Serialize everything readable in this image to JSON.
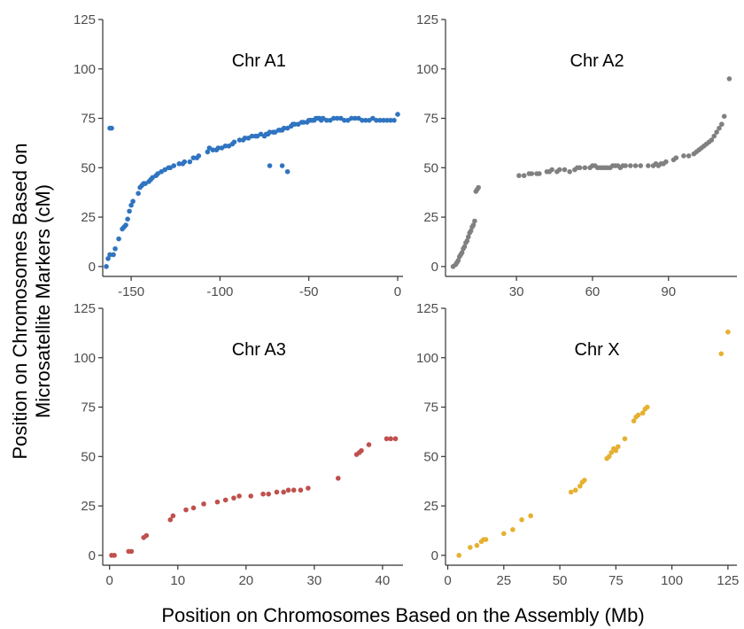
{
  "ylabel_lines": [
    "Position on Chromosomes Based on",
    "Microsatellite Markers (cM)"
  ],
  "xlabel": "Position on Chromosomes Based on the Assembly (Mb)",
  "chart_data": [
    {
      "type": "scatter",
      "title": "Chr A1",
      "color": "#2f74c0",
      "xlim": [
        -166,
        3
      ],
      "ylim": [
        -5,
        125
      ],
      "xticks": [
        -150,
        -100,
        -50,
        0
      ],
      "yticks": [
        0,
        25,
        50,
        75,
        100,
        125
      ],
      "x": [
        -164,
        -163,
        -162,
        -161,
        -160,
        -159,
        -157,
        -155,
        -154,
        -153,
        -152,
        -151,
        -150,
        -149,
        -146,
        -145,
        -144,
        -143,
        -142,
        -140,
        -139,
        -138,
        -136,
        -135,
        -133,
        -131,
        -129,
        -128,
        -126,
        -123,
        -121,
        -120,
        -117,
        -115,
        -113,
        -112,
        -107,
        -106,
        -104,
        -102,
        -101,
        -99,
        -97,
        -95,
        -93,
        -92,
        -89,
        -87,
        -86,
        -84,
        -82,
        -80,
        -79,
        -77,
        -75,
        -74,
        -73,
        -72,
        -70,
        -69,
        -67,
        -66,
        -65,
        -64,
        -62,
        -60,
        -59,
        -58,
        -56,
        -54,
        -53,
        -51,
        -50,
        -49,
        -48,
        -47,
        -46,
        -45,
        -44,
        -43,
        -42,
        -40,
        -38,
        -36,
        -34,
        -32,
        -30,
        -28,
        -26,
        -24,
        -22,
        -20,
        -18,
        -16,
        -14,
        -12,
        -10,
        -8,
        -6,
        -4,
        -2,
        0,
        -162,
        -72,
        -65,
        -62
      ],
      "y": [
        0,
        4,
        6,
        70,
        6,
        9,
        14,
        19,
        20,
        21,
        24,
        28,
        31,
        33,
        37,
        40,
        41,
        42,
        42,
        43,
        44,
        45,
        46,
        47,
        48,
        49,
        50,
        50,
        51,
        52,
        52,
        53,
        53,
        55,
        55,
        56,
        58,
        60,
        59,
        59,
        60,
        60,
        61,
        61,
        62,
        63,
        64,
        64,
        65,
        65,
        66,
        66,
        66,
        67,
        66,
        67,
        67,
        68,
        68,
        68,
        69,
        69,
        69,
        70,
        70,
        71,
        72,
        72,
        72,
        73,
        73,
        73,
        74,
        74,
        74,
        74,
        75,
        75,
        75,
        74,
        75,
        74,
        74,
        75,
        75,
        75,
        74,
        74,
        75,
        75,
        75,
        74,
        74,
        74,
        75,
        74,
        74,
        74,
        74,
        74,
        74,
        77,
        70,
        51,
        51,
        48
      ]
    },
    {
      "type": "scatter",
      "title": "Chr A2",
      "color": "#808080",
      "xlim": [
        2,
        117
      ],
      "ylim": [
        -5,
        125
      ],
      "xticks": [
        30,
        60,
        90
      ],
      "yticks": [
        0,
        25,
        50,
        75,
        100,
        125
      ],
      "x": [
        5,
        6,
        6.5,
        7,
        7.5,
        8,
        8.5,
        9,
        9.5,
        10,
        10.5,
        11,
        11.5,
        12,
        12.5,
        13,
        13.5,
        14,
        14.5,
        15,
        31,
        33,
        35,
        36,
        38,
        39,
        42,
        43,
        44,
        46,
        47,
        49,
        51,
        53,
        54,
        55,
        57,
        59,
        60,
        61,
        62,
        63,
        64,
        65,
        66,
        67,
        68,
        69,
        70,
        71,
        72,
        73,
        75,
        77,
        79,
        82,
        84,
        85,
        86,
        87,
        88,
        89,
        92,
        93,
        96,
        98,
        100,
        101,
        102,
        103,
        104,
        105,
        106,
        107,
        108,
        109,
        110,
        111,
        112,
        114
      ],
      "y": [
        0,
        1,
        2,
        3,
        5,
        6,
        7,
        9,
        10,
        12,
        13,
        15,
        17,
        18,
        20,
        21,
        23,
        38,
        39,
        40,
        46,
        46,
        47,
        47,
        47,
        47,
        48,
        48,
        49,
        48,
        49,
        49,
        48,
        49,
        50,
        50,
        50,
        50,
        51,
        51,
        50,
        50,
        50,
        50,
        50,
        50,
        51,
        51,
        51,
        50,
        51,
        51,
        51,
        51,
        51,
        51,
        51,
        52,
        51,
        52,
        52,
        53,
        54,
        55,
        56,
        56,
        57,
        58,
        59,
        60,
        61,
        62,
        63,
        64,
        66,
        68,
        70,
        72,
        76,
        95
      ]
    },
    {
      "type": "scatter",
      "title": "Chr A3",
      "color": "#c0504d",
      "xlim": [
        -1,
        43
      ],
      "ylim": [
        -5,
        125
      ],
      "xticks": [
        0,
        10,
        20,
        30,
        40
      ],
      "yticks": [
        0,
        25,
        50,
        75,
        100,
        125
      ],
      "x": [
        0.3,
        0.7,
        2.8,
        3.2,
        5.0,
        5.4,
        8.9,
        9.3,
        11.2,
        12.3,
        13.8,
        15.8,
        17.0,
        18.2,
        19.0,
        20.7,
        22.5,
        23.3,
        24.5,
        25.5,
        26.2,
        27.0,
        28.0,
        29.1,
        33.5,
        36.2,
        36.6,
        36.9,
        38.0,
        40.6,
        41.2,
        41.9
      ],
      "y": [
        0,
        0,
        2,
        2,
        9,
        10,
        18,
        20,
        23,
        24,
        26,
        27,
        28,
        29,
        30,
        30,
        31,
        31,
        32,
        32,
        33,
        33,
        33,
        34,
        39,
        51,
        52,
        53,
        56,
        59,
        59,
        59
      ],
      "series_note": ""
    },
    {
      "type": "scatter",
      "title": "Chr X",
      "color": "#e6b030",
      "xlim": [
        -1,
        129
      ],
      "ylim": [
        -5,
        125
      ],
      "xticks": [
        0,
        25,
        50,
        75,
        100,
        125
      ],
      "yticks": [
        0,
        25,
        50,
        75,
        100,
        125
      ],
      "x": [
        5,
        10,
        13,
        15,
        16,
        17,
        25,
        29,
        33,
        37,
        55,
        57,
        59,
        60,
        61,
        71,
        72,
        73,
        74,
        75,
        76,
        79,
        83,
        84,
        85,
        87,
        88,
        89,
        122,
        125
      ],
      "y": [
        0,
        4,
        5,
        7,
        8,
        8,
        11,
        13,
        18,
        20,
        32,
        33,
        35,
        37,
        38,
        49,
        50,
        52,
        54,
        53,
        55,
        59,
        68,
        70,
        71,
        72,
        74,
        75,
        102,
        113
      ]
    }
  ]
}
